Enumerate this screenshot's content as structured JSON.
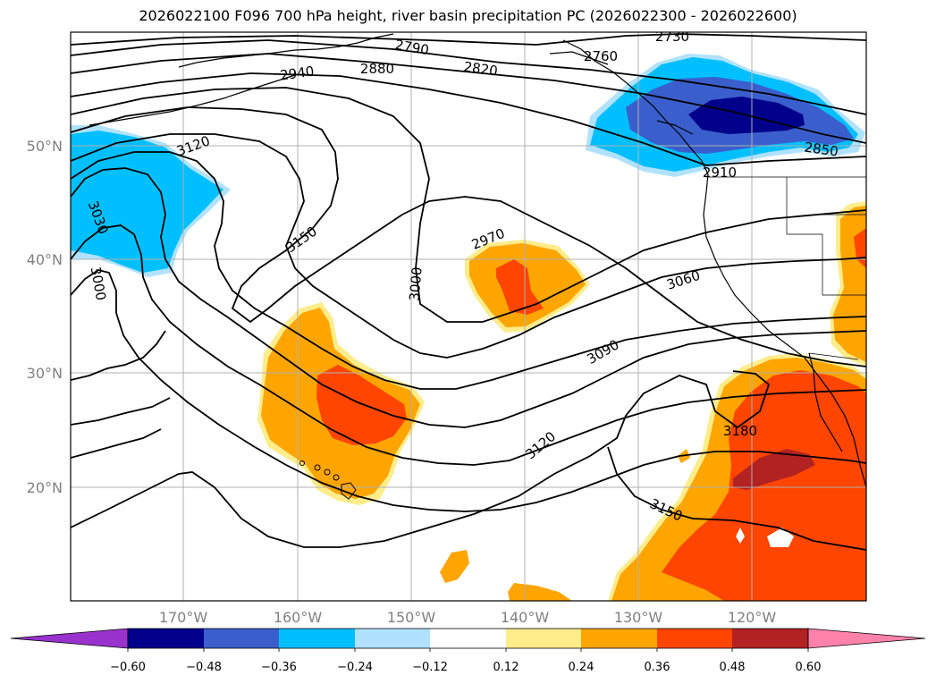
{
  "title": "2026022100 F096 700 hPa height, river basin precipitation PC (2026022300 - 2026022600)",
  "lat_labels": [
    "50°N",
    "40°N",
    "30°N",
    "20°N"
  ],
  "lon_labels": [
    "170°W",
    "160°W",
    "150°W",
    "140°W",
    "130°W",
    "120°W"
  ],
  "contour_labels": [
    "2730",
    "2790",
    "2820",
    "2880",
    "2940",
    "2760",
    "2850",
    "2910",
    "3120",
    "3030",
    "3000",
    "3150",
    "2970",
    "3000",
    "3060",
    "3090",
    "3120",
    "3180",
    "3150"
  ],
  "colorbar": {
    "ticks": [
      "−0.60",
      "−0.48",
      "−0.36",
      "−0.24",
      "−0.12",
      "0.12",
      "0.24",
      "0.36",
      "0.48",
      "0.60"
    ],
    "colors": [
      "#9932cc",
      "#00008b",
      "#3a5fcd",
      "#00bfff",
      "#b0e2ff",
      "#ffffff",
      "#ffec8b",
      "#ffa500",
      "#ff4500",
      "#b22222",
      "#ff82ab"
    ]
  }
}
